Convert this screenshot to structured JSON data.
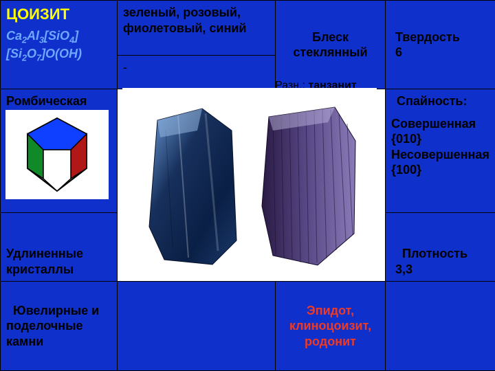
{
  "header": {
    "mineral_name": "ЦОИЗИТ",
    "formula_html": "Ca<sub>2</sub>Al<sub>3</sub>[SiO<sub>4</sub>]<br>[Si<sub>2</sub>O<sub>7</sub>]O(OH)",
    "colors": "зеленый, розовый, фиолетовый, синий",
    "dash": "-",
    "luster_label": "Блеск",
    "luster_value": "стеклянный",
    "hardness_label": "Твердость",
    "hardness_value": "6"
  },
  "mid": {
    "system": "Ромбическая сингония",
    "habit": "Удлиненные кристаллы",
    "variety_label": "Разн.:",
    "variety_value": "танзанит",
    "cleavage_label": "Спайность:",
    "cleavage_text_html": "Совершенная {010}<br>Несовершенная {100}",
    "density_label": "Плотность",
    "density_value": "3,3"
  },
  "bottom": {
    "use_html": "&nbsp;&nbsp;Ювелирные и поделочные камни",
    "related": "Эпидот, клиноцоизит, родонит"
  },
  "style": {
    "bg": "#1030cc",
    "name_color": "#ffff00",
    "formula_color": "#6fa8ff",
    "related_color": "#ee3a24",
    "crystal1_fill1": "#0b2a5a",
    "crystal1_fill2": "#2a5aa0",
    "crystal2_fill1": "#3a2a60",
    "crystal2_fill2": "#7a6aa8",
    "poly_top": "#1040ff",
    "poly_right": "#b01818",
    "poly_left": "#108a28"
  }
}
